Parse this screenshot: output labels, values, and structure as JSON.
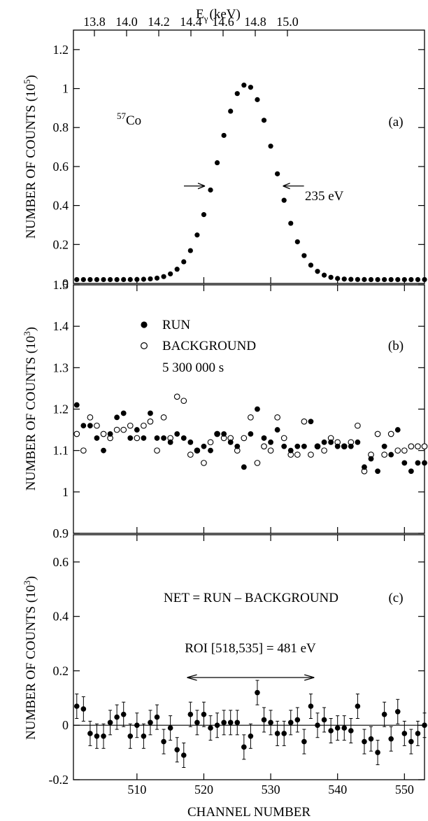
{
  "top_axis": {
    "label_main": "E",
    "label_sub": "γ",
    "label_unit": "(keV)",
    "ticks": [
      "13.8",
      "14.0",
      "14.2",
      "14.4",
      "14.6",
      "14.8",
      "15.0"
    ],
    "tick_values": [
      13.8,
      14.0,
      14.2,
      14.4,
      14.6,
      14.8,
      15.0
    ]
  },
  "x_axis": {
    "label": "CHANNEL NUMBER",
    "ticks": [
      "510",
      "520",
      "530",
      "540",
      "550"
    ],
    "tick_values": [
      510,
      520,
      530,
      540,
      550
    ],
    "range": [
      500.5,
      553
    ]
  },
  "chart_data": [
    {
      "type": "scatter",
      "panel": "(a)",
      "isotope_sup": "57",
      "isotope": "Co",
      "ylabel": "NUMBER OF COUNTS (10",
      "ylabel_sup": "5",
      "ylabel_tail": ")",
      "ylim": [
        0,
        1.3
      ],
      "yticks": [
        "0",
        "0.2",
        "0.4",
        "0.6",
        "0.8",
        "1",
        "1.2"
      ],
      "ytick_values": [
        0,
        0.2,
        0.4,
        0.6,
        0.8,
        1.0,
        1.2
      ],
      "annotation": "235 eV",
      "fwhm_x": [
        521.0,
        531.0
      ],
      "fwhm_y": 0.5,
      "center": 526.3,
      "sigma": 4.25,
      "peak": 1.0,
      "baseline": 0.02,
      "x": [
        501,
        502,
        503,
        504,
        505,
        506,
        507,
        508,
        509,
        510,
        511,
        512,
        513,
        514,
        515,
        516,
        517,
        518,
        519,
        520,
        521,
        522,
        523,
        524,
        525,
        526,
        527,
        528,
        529,
        530,
        531,
        532,
        533,
        534,
        535,
        536,
        537,
        538,
        539,
        540,
        541,
        542,
        543,
        544,
        545,
        546,
        547,
        548,
        549,
        550,
        551,
        552,
        553
      ]
    },
    {
      "type": "scatter",
      "panel": "(b)",
      "ylabel": "NUMBER OF COUNTS (10",
      "ylabel_sup": "3",
      "ylabel_tail": ")",
      "ylim": [
        0.9,
        1.5
      ],
      "yticks": [
        "0.9",
        "1",
        "1.1",
        "1.2",
        "1.3",
        "1.4",
        "1.5"
      ],
      "ytick_values": [
        0.9,
        1.0,
        1.1,
        1.2,
        1.3,
        1.4,
        1.5
      ],
      "legend": [
        "RUN",
        "BACKGROUND"
      ],
      "note": "5 300 000 s",
      "series": [
        {
          "name": "RUN",
          "x": [
            501,
            502,
            503,
            504,
            505,
            506,
            507,
            508,
            509,
            510,
            511,
            512,
            513,
            514,
            515,
            516,
            517,
            518,
            519,
            520,
            521,
            522,
            523,
            524,
            525,
            526,
            527,
            528,
            529,
            530,
            531,
            532,
            533,
            534,
            535,
            536,
            537,
            538,
            539,
            540,
            541,
            542,
            543,
            544,
            545,
            546,
            547,
            548,
            549,
            550,
            551,
            552,
            553
          ],
          "values": [
            1.21,
            1.16,
            1.16,
            1.13,
            1.1,
            1.14,
            1.18,
            1.19,
            1.13,
            1.15,
            1.13,
            1.19,
            1.13,
            1.13,
            1.12,
            1.14,
            1.13,
            1.12,
            1.1,
            1.11,
            1.1,
            1.14,
            1.14,
            1.12,
            1.11,
            1.06,
            1.14,
            1.2,
            1.13,
            1.12,
            1.15,
            1.11,
            1.1,
            1.11,
            1.11,
            1.17,
            1.11,
            1.12,
            1.12,
            1.11,
            1.11,
            1.11,
            1.12,
            1.06,
            1.08,
            1.05,
            1.11,
            1.09,
            1.15,
            1.07,
            1.05,
            1.07,
            1.07
          ]
        },
        {
          "name": "BACKGROUND",
          "x": [
            501,
            502,
            503,
            504,
            505,
            506,
            507,
            508,
            509,
            510,
            511,
            512,
            513,
            514,
            515,
            516,
            517,
            518,
            519,
            520,
            521,
            522,
            523,
            524,
            525,
            526,
            527,
            528,
            529,
            530,
            531,
            532,
            533,
            534,
            535,
            536,
            537,
            538,
            539,
            540,
            541,
            542,
            543,
            544,
            545,
            546,
            547,
            548,
            549,
            550,
            551,
            552,
            553
          ],
          "values": [
            1.14,
            1.1,
            1.18,
            1.16,
            1.14,
            1.13,
            1.15,
            1.15,
            1.16,
            1.13,
            1.16,
            1.17,
            1.1,
            1.18,
            1.13,
            1.23,
            1.22,
            1.09,
            1.1,
            1.07,
            1.12,
            1.14,
            1.13,
            1.13,
            1.1,
            1.13,
            1.18,
            1.07,
            1.11,
            1.1,
            1.18,
            1.13,
            1.09,
            1.09,
            1.17,
            1.09,
            1.11,
            1.1,
            1.13,
            1.12,
            1.11,
            1.12,
            1.16,
            1.05,
            1.09,
            1.14,
            1.09,
            1.14,
            1.1,
            1.1,
            1.11,
            1.11,
            1.11
          ]
        }
      ]
    },
    {
      "type": "scatter",
      "panel": "(c)",
      "ylabel": "NUMBER OF COUNTS (10",
      "ylabel_sup": "3",
      "ylabel_tail": ")",
      "ylim": [
        -0.2,
        0.7
      ],
      "yticks": [
        "-0.2",
        "0",
        "0.2",
        "0.4",
        "0.6"
      ],
      "ytick_values": [
        -0.2,
        0.0,
        0.2,
        0.4,
        0.6
      ],
      "equation": "NET = RUN – BACKGROUND",
      "roi_label": "ROI [518,535] = 481 eV",
      "roi_range": [
        517.5,
        536.5
      ],
      "error": 0.045,
      "x": [
        501,
        502,
        503,
        504,
        505,
        506,
        507,
        508,
        509,
        510,
        511,
        512,
        513,
        514,
        515,
        516,
        517,
        518,
        519,
        520,
        521,
        522,
        523,
        524,
        525,
        526,
        527,
        528,
        529,
        530,
        531,
        532,
        533,
        534,
        535,
        536,
        537,
        538,
        539,
        540,
        541,
        542,
        543,
        544,
        545,
        546,
        547,
        548,
        549,
        550,
        551,
        552,
        553
      ],
      "values": [
        0.07,
        0.06,
        -0.03,
        -0.04,
        -0.04,
        0.01,
        0.03,
        0.04,
        -0.04,
        0.0,
        -0.04,
        0.01,
        0.03,
        -0.06,
        -0.01,
        -0.09,
        -0.11,
        0.04,
        0.01,
        0.04,
        -0.01,
        0.0,
        0.01,
        0.01,
        0.01,
        -0.08,
        -0.04,
        0.12,
        0.02,
        0.01,
        -0.03,
        -0.03,
        0.01,
        0.02,
        -0.06,
        0.07,
        0.0,
        0.02,
        -0.02,
        -0.01,
        -0.01,
        -0.02,
        0.07,
        -0.06,
        -0.05,
        -0.1,
        0.04,
        -0.05,
        0.05,
        -0.03,
        -0.06,
        -0.03,
        0.0
      ]
    }
  ]
}
